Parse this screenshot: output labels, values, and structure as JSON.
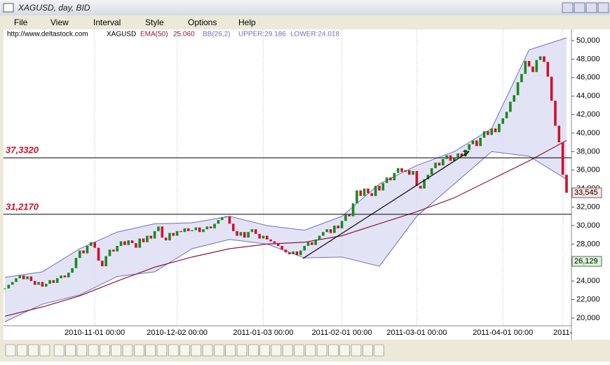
{
  "window": {
    "title": "XAGUSD, day, BID",
    "menu": [
      "File",
      "View",
      "Interval",
      "Style",
      "Options",
      "Help"
    ]
  },
  "header": {
    "site": "http://www.deltastock.com",
    "symbol": "XAGUSD",
    "ema_name": "EMA(50)",
    "ema_value": "25.060",
    "bb_name": "BB(26,2)",
    "upper": "UPPER:29.186",
    "lower": "LOWER:24.018"
  },
  "chart_data": {
    "type": "candlestick",
    "up_color": "#1a8a1a",
    "down_color": "#d0102a",
    "ylim": [
      17650,
      51210
    ],
    "yticks": [
      {
        "value": 20000,
        "label": "20,000"
      },
      {
        "value": 22000,
        "label": "22,000"
      },
      {
        "value": 24000,
        "label": "24,000"
      },
      {
        "value": 26000,
        "label": "26,000"
      },
      {
        "value": 28000,
        "label": "28,000"
      },
      {
        "value": 30000,
        "label": "30,000"
      },
      {
        "value": 32000,
        "label": "32,000"
      },
      {
        "value": 34000,
        "label": "34,000"
      },
      {
        "value": 36000,
        "label": "36,000"
      },
      {
        "value": 38000,
        "label": "38,000"
      },
      {
        "value": 40000,
        "label": "40,000"
      },
      {
        "value": 42000,
        "label": "42,000"
      },
      {
        "value": 44000,
        "label": "44,000"
      },
      {
        "value": 46000,
        "label": "46,000"
      },
      {
        "value": 48000,
        "label": "48,000"
      },
      {
        "value": 50000,
        "label": "50,000"
      }
    ],
    "categories": [
      null,
      null,
      null,
      null,
      null,
      null,
      null,
      null,
      null,
      null,
      null,
      null,
      null,
      null,
      null,
      null,
      null,
      null,
      null,
      null,
      null,
      null,
      null,
      null,
      "2010-11-01 00:00",
      null,
      null,
      null,
      null,
      null,
      null,
      null,
      null,
      null,
      null,
      null,
      null,
      null,
      null,
      null,
      null,
      null,
      null,
      null,
      null,
      null,
      "2010-12-02 00:00",
      null,
      null,
      null,
      null,
      null,
      null,
      null,
      null,
      null,
      null,
      null,
      null,
      null,
      null,
      null,
      null,
      null,
      null,
      null,
      null,
      null,
      null,
      "2011-01-03 00:00",
      null,
      null,
      null,
      null,
      null,
      null,
      null,
      null,
      null,
      null,
      null,
      null,
      null,
      null,
      null,
      null,
      null,
      null,
      null,
      null,
      "2011-02-01 00:00",
      null,
      null,
      null,
      null,
      null,
      null,
      null,
      null,
      null,
      null,
      null,
      null,
      null,
      null,
      null,
      null,
      null,
      null,
      null,
      "2011-03-01 00:00",
      null,
      null,
      null,
      null,
      null,
      null,
      null,
      null,
      null,
      null,
      null,
      null,
      null,
      null,
      null,
      null,
      null,
      null,
      null,
      null,
      null,
      null,
      "2011-04-01 00:00",
      null,
      null,
      null,
      null,
      null,
      null,
      null,
      null,
      null,
      null,
      null,
      null,
      null,
      null,
      null,
      "2011-",
      null
    ],
    "values": [
      23200,
      23600,
      23900,
      24300,
      24600,
      24200,
      24500,
      24000,
      23600,
      23900,
      23400,
      23700,
      24100,
      23800,
      24300,
      24600,
      24400,
      24900,
      25400,
      26500,
      27300,
      27000,
      27800,
      28200,
      27600,
      26200,
      25600,
      26700,
      27400,
      27200,
      27800,
      28300,
      27900,
      28400,
      28100,
      27600,
      28600,
      28200,
      28900,
      28600,
      29400,
      29900,
      28700,
      28400,
      29200,
      28900,
      29400,
      29300,
      29700,
      29400,
      29500,
      29800,
      29300,
      29600,
      29900,
      29700,
      30200,
      30600,
      30900,
      31000,
      30200,
      29400,
      28900,
      29300,
      28700,
      29300,
      29600,
      29100,
      28600,
      28900,
      28500,
      28300,
      28100,
      27800,
      27400,
      27100,
      26900,
      27200,
      26800,
      27300,
      27800,
      28200,
      27900,
      28500,
      28900,
      29300,
      29600,
      29200,
      30000,
      29700,
      30500,
      31200,
      31000,
      32400,
      33800,
      33200,
      34000,
      33500,
      33200,
      34300,
      33800,
      34600,
      35200,
      34900,
      35700,
      36200,
      35800,
      36000,
      35500,
      35900,
      34300,
      34000,
      35000,
      35500,
      36200,
      36800,
      36500,
      37200,
      37600,
      37000,
      37300,
      37800,
      37500,
      38200,
      38800,
      39200,
      38600,
      39500,
      40200,
      39800,
      40500,
      40100,
      41000,
      41600,
      42300,
      43400,
      44100,
      45500,
      46400,
      47800,
      47200,
      46600,
      47900,
      48300,
      47700,
      46100,
      43500,
      40800,
      39000,
      35500,
      33545
    ],
    "ema": {
      "color": "#8b1a3a",
      "values": [
        20200,
        21200,
        22400,
        24000,
        25500,
        26600,
        27500,
        28000,
        28200,
        28900,
        30200,
        31500,
        33000,
        35000,
        37000,
        39200
      ]
    },
    "bands": {
      "line_color": "#7070c0",
      "fill_color": "#dcdcf4",
      "upper": [
        24400,
        25000,
        27500,
        29300,
        30200,
        30300,
        31000,
        30000,
        29500,
        31000,
        34500,
        36500,
        38000,
        40500,
        49000,
        50300
      ],
      "lower": [
        19600,
        21500,
        22500,
        24500,
        25000,
        27500,
        28500,
        28000,
        26500,
        26600,
        25600,
        31000,
        34500,
        38000,
        37500,
        35000
      ]
    },
    "levels": [
      {
        "value": 37332,
        "label": "37,3320"
      },
      {
        "value": 31217,
        "label": "31,2170"
      }
    ],
    "price_tags": [
      {
        "value": 33545,
        "label": "33,545",
        "color": "#ffe0e0"
      },
      {
        "value": 26129,
        "label": "26,129",
        "color": "#d8f5d8"
      }
    ]
  }
}
